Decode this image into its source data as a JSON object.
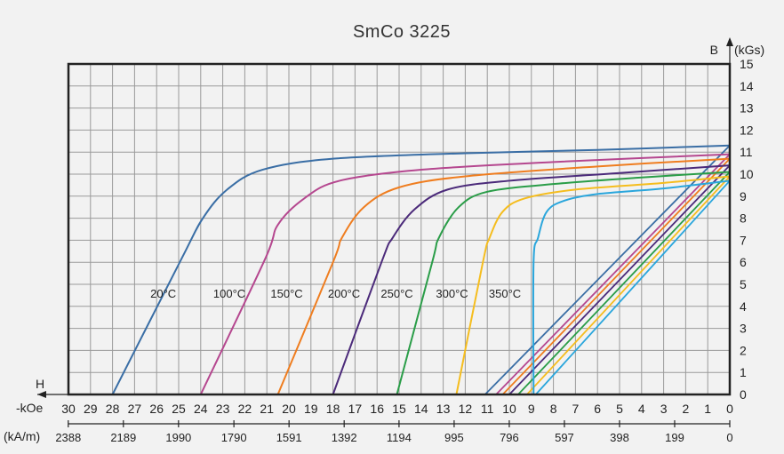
{
  "chart_data": {
    "type": "line",
    "title": "SmCo 3225",
    "y_axis_label": "B",
    "y_axis_unit": "(kGs)",
    "x_axis_label": "H",
    "x_unit_koe": "-kOe",
    "x_unit_kam": "(kA/m)",
    "xlim_koe": [
      30,
      0
    ],
    "ylim": [
      0,
      15
    ],
    "grid": true,
    "x_ticks_koe": [
      "30",
      "29",
      "28",
      "27",
      "26",
      "25",
      "24",
      "23",
      "22",
      "21",
      "20",
      "19",
      "18",
      "17",
      "16",
      "15",
      "14",
      "13",
      "12",
      "11",
      "10",
      "9",
      "8",
      "7",
      "6",
      "5",
      "4",
      "3",
      "2",
      "1",
      "0"
    ],
    "x_ticks_kam": [
      "2388",
      "2189",
      "1990",
      "1790",
      "1591",
      "1392",
      "1194",
      "995",
      "796",
      "597",
      "398",
      "199",
      "0"
    ],
    "y_ticks": [
      "0",
      "1",
      "2",
      "3",
      "4",
      "5",
      "6",
      "7",
      "8",
      "9",
      "10",
      "11",
      "12",
      "13",
      "14",
      "15"
    ],
    "series": [
      {
        "name": "20°C",
        "color": "#3a6ea5",
        "Br": 11.3,
        "Hcj": 28.0,
        "knee": 8.0,
        "Hcb_line": 11.1,
        "curve": [
          [
            28.0,
            0
          ],
          [
            24.9,
            6.1
          ],
          [
            23.9,
            8.0
          ],
          [
            22.8,
            9.3
          ],
          [
            21.2,
            10.2
          ],
          [
            18,
            10.7
          ],
          [
            12,
            10.95
          ],
          [
            6,
            11.1
          ],
          [
            0,
            11.3
          ]
        ]
      },
      {
        "name": "100°C",
        "color": "#b5478f",
        "Br": 10.9,
        "Hcj": 24.0,
        "knee": 7.7,
        "Hcb_line": 10.6,
        "curve": [
          [
            24.0,
            0
          ],
          [
            21.1,
            6.1
          ],
          [
            20.5,
            7.7
          ],
          [
            19.3,
            8.9
          ],
          [
            17.7,
            9.7
          ],
          [
            14,
            10.2
          ],
          [
            8,
            10.55
          ],
          [
            0,
            10.9
          ]
        ]
      },
      {
        "name": "150°C",
        "color": "#ef7d1f",
        "Br": 10.7,
        "Hcj": 20.5,
        "knee": 7.1,
        "Hcb_line": 10.3,
        "curve": [
          [
            20.5,
            0
          ],
          [
            18.0,
            6.0
          ],
          [
            17.6,
            7.1
          ],
          [
            16.6,
            8.5
          ],
          [
            15.0,
            9.4
          ],
          [
            12,
            9.9
          ],
          [
            6,
            10.35
          ],
          [
            0,
            10.7
          ]
        ]
      },
      {
        "name": "200°C",
        "color": "#4b2a7a",
        "Br": 10.4,
        "Hcj": 18.0,
        "knee": 7.1,
        "Hcb_line": 10.0,
        "curve": [
          [
            18.0,
            0
          ],
          [
            15.8,
            6.0
          ],
          [
            15.3,
            7.1
          ],
          [
            14.3,
            8.4
          ],
          [
            12.8,
            9.3
          ],
          [
            10,
            9.7
          ],
          [
            5,
            10.05
          ],
          [
            0,
            10.4
          ]
        ]
      },
      {
        "name": "250°C",
        "color": "#2a9d48",
        "Br": 10.1,
        "Hcj": 15.1,
        "knee": 7.1,
        "Hcb_line": 9.6,
        "curve": [
          [
            15.1,
            0
          ],
          [
            13.5,
            6.0
          ],
          [
            13.2,
            7.1
          ],
          [
            12.3,
            8.5
          ],
          [
            11.0,
            9.2
          ],
          [
            8,
            9.55
          ],
          [
            4,
            9.85
          ],
          [
            0,
            10.1
          ]
        ]
      },
      {
        "name": "300°C",
        "color": "#f5bd1e",
        "Br": 9.9,
        "Hcj": 12.4,
        "knee": 7.1,
        "Hcb_line": 9.2,
        "curve": [
          [
            12.4,
            0
          ],
          [
            11.2,
            6.0
          ],
          [
            10.9,
            7.1
          ],
          [
            10.3,
            8.3
          ],
          [
            9.3,
            8.9
          ],
          [
            7,
            9.3
          ],
          [
            3,
            9.6
          ],
          [
            0,
            9.9
          ]
        ]
      },
      {
        "name": "350°C",
        "color": "#2aa6dc",
        "Br": 9.7,
        "Hcj": 8.9,
        "knee": 7.1,
        "Hcb_line": 8.8,
        "curve": [
          [
            8.9,
            0
          ],
          [
            8.9,
            6.0
          ],
          [
            8.7,
            7.1
          ],
          [
            8.3,
            8.3
          ],
          [
            7.5,
            8.8
          ],
          [
            6,
            9.1
          ],
          [
            3,
            9.35
          ],
          [
            0,
            9.7
          ]
        ]
      }
    ],
    "series_label_positions_koe": [
      25.7,
      22.7,
      20.1,
      17.5,
      15.1,
      12.6,
      10.2
    ],
    "series_label_b": 4.4
  }
}
